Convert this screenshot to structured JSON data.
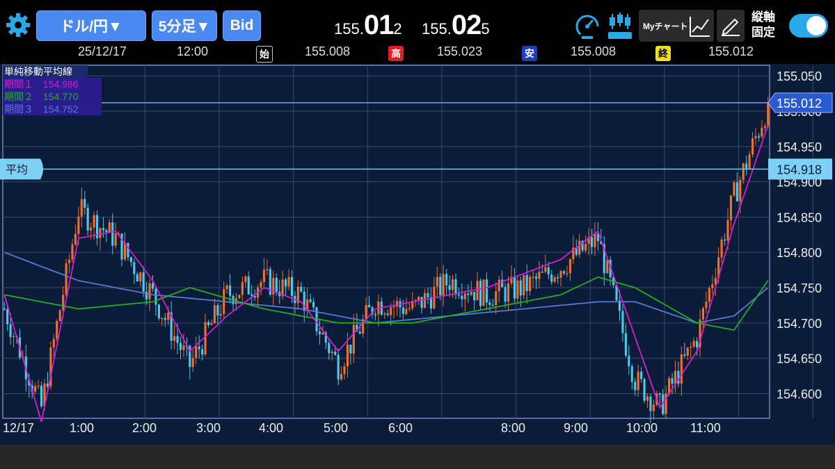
{
  "toolbar": {
    "pair_label": "ドル/円▼",
    "timeframe_label": "5分足▼",
    "side_label": "Bid",
    "bid_prefix": "155.",
    "bid_big": "01",
    "bid_suffix": "2",
    "ask_prefix": "155.",
    "ask_big": "02",
    "ask_suffix": "5",
    "mychart_label": "Myチャート",
    "lock_label_1": "縦軸",
    "lock_label_2": "固定",
    "lock_on": true
  },
  "ohlc": {
    "date": "25/12/17",
    "time": "12:00",
    "open_tag": "始",
    "open": "155.008",
    "high_tag": "高",
    "high": "155.023",
    "low_tag": "安",
    "low": "155.008",
    "close_tag": "終",
    "close": "155.012"
  },
  "legend": {
    "title": "単純移動平均線",
    "rows": [
      {
        "label": "期間１",
        "value": "154.986",
        "color": "#d020d0"
      },
      {
        "label": "期間２",
        "value": "154.770",
        "color": "#22b022"
      },
      {
        "label": "期間３",
        "value": "154.752",
        "color": "#5a78d8"
      }
    ]
  },
  "chart_data": {
    "type": "candlestick",
    "y_ticks": [
      "155.050",
      "155.000",
      "154.950",
      "154.900",
      "154.850",
      "154.800",
      "154.750",
      "154.700",
      "154.650",
      "154.600"
    ],
    "ylim": [
      154.565,
      155.065
    ],
    "x_ticks": [
      "12/17",
      "1:00",
      "2:00",
      "3:00",
      "4:00",
      "5:00",
      "6:00",
      "8:00",
      "9:00",
      "10:00",
      "11:00"
    ],
    "current_price_label": "155.012",
    "current_price": 155.012,
    "average_label": "平均",
    "average_price_label": "154.918",
    "average_price": 154.918,
    "colors": {
      "up": "#f07030",
      "down": "#50c8e8",
      "ma1": "#d020d0",
      "ma2": "#22b022",
      "ma3": "#5a78d8"
    },
    "key_points": [
      [
        0,
        154.72
      ],
      [
        12,
        154.58
      ],
      [
        24,
        154.86
      ],
      [
        36,
        154.82
      ],
      [
        48,
        154.74
      ],
      [
        60,
        154.64
      ],
      [
        72,
        154.74
      ],
      [
        84,
        154.76
      ],
      [
        96,
        154.74
      ],
      [
        108,
        154.64
      ],
      [
        120,
        154.73
      ],
      [
        132,
        154.72
      ],
      [
        144,
        154.76
      ],
      [
        156,
        154.74
      ],
      [
        168,
        154.75
      ],
      [
        180,
        154.78
      ],
      [
        192,
        154.82
      ],
      [
        204,
        154.62
      ],
      [
        212,
        154.58
      ],
      [
        224,
        154.68
      ],
      [
        236,
        154.88
      ],
      [
        247,
        155.01
      ]
    ],
    "ma1_points": [
      [
        0,
        154.74
      ],
      [
        12,
        154.56
      ],
      [
        24,
        154.82
      ],
      [
        36,
        154.83
      ],
      [
        48,
        154.76
      ],
      [
        60,
        154.66
      ],
      [
        72,
        154.71
      ],
      [
        84,
        154.75
      ],
      [
        96,
        154.73
      ],
      [
        108,
        154.66
      ],
      [
        120,
        154.72
      ],
      [
        132,
        154.73
      ],
      [
        144,
        154.74
      ],
      [
        156,
        154.75
      ],
      [
        168,
        154.77
      ],
      [
        180,
        154.79
      ],
      [
        192,
        154.83
      ],
      [
        204,
        154.68
      ],
      [
        212,
        154.58
      ],
      [
        224,
        154.66
      ],
      [
        236,
        154.84
      ],
      [
        247,
        154.98
      ]
    ],
    "ma2_points": [
      [
        0,
        154.74
      ],
      [
        24,
        154.72
      ],
      [
        48,
        154.73
      ],
      [
        60,
        154.75
      ],
      [
        84,
        154.72
      ],
      [
        108,
        154.7
      ],
      [
        132,
        154.7
      ],
      [
        156,
        154.72
      ],
      [
        180,
        154.74
      ],
      [
        192,
        154.765
      ],
      [
        204,
        154.75
      ],
      [
        224,
        154.7
      ],
      [
        236,
        154.69
      ],
      [
        247,
        154.76
      ]
    ],
    "ma3_points": [
      [
        0,
        154.8
      ],
      [
        24,
        154.76
      ],
      [
        48,
        154.74
      ],
      [
        72,
        154.73
      ],
      [
        96,
        154.72
      ],
      [
        120,
        154.7
      ],
      [
        144,
        154.71
      ],
      [
        168,
        154.72
      ],
      [
        192,
        154.73
      ],
      [
        204,
        154.73
      ],
      [
        224,
        154.7
      ],
      [
        236,
        154.71
      ],
      [
        247,
        154.75
      ]
    ]
  }
}
